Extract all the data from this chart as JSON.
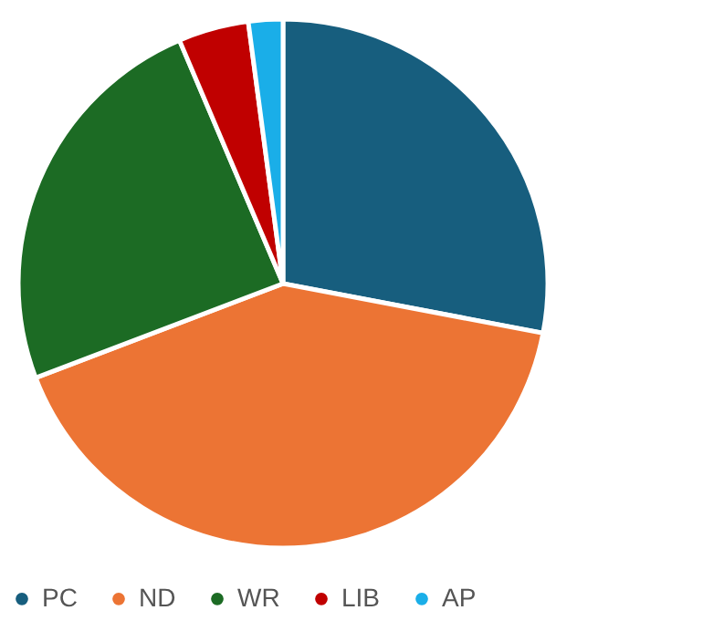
{
  "chart_data": {
    "type": "pie",
    "categories": [
      "PC",
      "ND",
      "WR",
      "LIB",
      "AP"
    ],
    "values": [
      28.0,
      41.2,
      24.4,
      4.3,
      2.1
    ],
    "colors": [
      "#175e7e",
      "#ec7434",
      "#1c6b24",
      "#c00000",
      "#1aaee8"
    ],
    "legend": "bottom"
  }
}
